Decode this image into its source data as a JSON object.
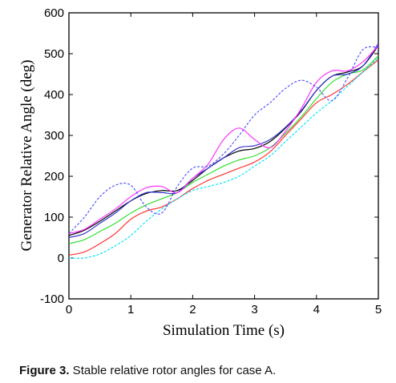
{
  "chart_data": {
    "type": "line",
    "xlabel": "Simulation Time (s)",
    "ylabel": "Generator Relative Angle (deg)",
    "xlim": [
      0,
      5
    ],
    "ylim": [
      -100,
      600
    ],
    "xticks": [
      "0",
      "1",
      "2",
      "3",
      "4",
      "5"
    ],
    "yticks": [
      "-100",
      "0",
      "100",
      "200",
      "300",
      "400",
      "500",
      "600"
    ],
    "grid": false,
    "series": [
      {
        "color": "#ff3333",
        "style": "solid",
        "x": [
          0,
          0.25,
          0.5,
          0.75,
          1.0,
          1.25,
          1.5,
          1.75,
          2.0,
          2.25,
          2.5,
          2.75,
          3.0,
          3.25,
          3.5,
          3.75,
          4.0,
          4.25,
          4.5,
          4.75,
          5.0
        ],
        "y": [
          7,
          15,
          35,
          60,
          95,
          115,
          125,
          145,
          170,
          190,
          205,
          220,
          235,
          260,
          300,
          340,
          380,
          400,
          425,
          455,
          485
        ]
      },
      {
        "color": "#00e5ff",
        "style": "dashed",
        "x": [
          0,
          0.25,
          0.5,
          0.75,
          1.0,
          1.25,
          1.5,
          1.75,
          2.0,
          2.25,
          2.5,
          2.75,
          3.0,
          3.25,
          3.5,
          3.75,
          4.0,
          4.25,
          4.5,
          4.75,
          5.0
        ],
        "y": [
          0,
          0,
          10,
          30,
          55,
          90,
          120,
          145,
          165,
          175,
          185,
          200,
          225,
          250,
          285,
          320,
          355,
          385,
          420,
          455,
          490
        ]
      },
      {
        "color": "#33dd33",
        "style": "solid",
        "x": [
          0,
          0.25,
          0.5,
          0.75,
          1.0,
          1.25,
          1.5,
          1.75,
          2.0,
          2.25,
          2.5,
          2.75,
          3.0,
          3.25,
          3.5,
          3.75,
          4.0,
          4.25,
          4.5,
          4.75,
          5.0
        ],
        "y": [
          35,
          45,
          65,
          85,
          110,
          130,
          145,
          160,
          185,
          205,
          225,
          240,
          250,
          270,
          305,
          345,
          390,
          430,
          450,
          460,
          495
        ]
      },
      {
        "color": "#000000",
        "style": "solid",
        "x": [
          0,
          0.25,
          0.5,
          0.75,
          1.0,
          1.25,
          1.5,
          1.75,
          2.0,
          2.25,
          2.5,
          2.75,
          3.0,
          3.25,
          3.5,
          3.75,
          4.0,
          4.25,
          4.5,
          4.75,
          5.0
        ],
        "y": [
          55,
          68,
          90,
          115,
          140,
          158,
          165,
          165,
          190,
          220,
          245,
          262,
          268,
          285,
          318,
          358,
          410,
          445,
          455,
          470,
          520
        ]
      },
      {
        "color": "#3333cc",
        "style": "solid",
        "x": [
          0,
          0.25,
          0.5,
          0.75,
          1.0,
          1.25,
          1.5,
          1.75,
          2.0,
          2.25,
          2.5,
          2.75,
          3.0,
          3.25,
          3.5,
          3.75,
          4.0,
          4.25,
          4.5,
          4.75,
          5.0
        ],
        "y": [
          50,
          60,
          85,
          110,
          140,
          160,
          160,
          160,
          195,
          220,
          245,
          270,
          275,
          290,
          320,
          360,
          410,
          445,
          450,
          470,
          525
        ]
      },
      {
        "color": "#ff33ff",
        "style": "solid",
        "x": [
          0,
          0.25,
          0.5,
          0.75,
          1.0,
          1.25,
          1.5,
          1.75,
          2.0,
          2.25,
          2.5,
          2.75,
          3.0,
          3.25,
          3.5,
          3.75,
          4.0,
          4.25,
          4.5,
          4.75,
          5.0
        ],
        "y": [
          60,
          70,
          95,
          120,
          150,
          172,
          175,
          160,
          195,
          230,
          290,
          318,
          290,
          270,
          310,
          365,
          430,
          458,
          458,
          480,
          520
        ]
      },
      {
        "color": "#5555ff",
        "style": "dashed",
        "x": [
          0,
          0.25,
          0.5,
          0.75,
          1.0,
          1.25,
          1.5,
          1.75,
          2.0,
          2.25,
          2.5,
          2.75,
          3.0,
          3.25,
          3.5,
          3.75,
          4.0,
          4.25,
          4.5,
          4.75,
          5.0
        ],
        "y": [
          60,
          100,
          150,
          178,
          178,
          125,
          110,
          175,
          220,
          225,
          255,
          300,
          350,
          380,
          415,
          435,
          418,
          385,
          440,
          510,
          515
        ]
      }
    ]
  },
  "caption": {
    "label": "Figure 3.",
    "text": " Stable relative rotor angles for case A."
  }
}
